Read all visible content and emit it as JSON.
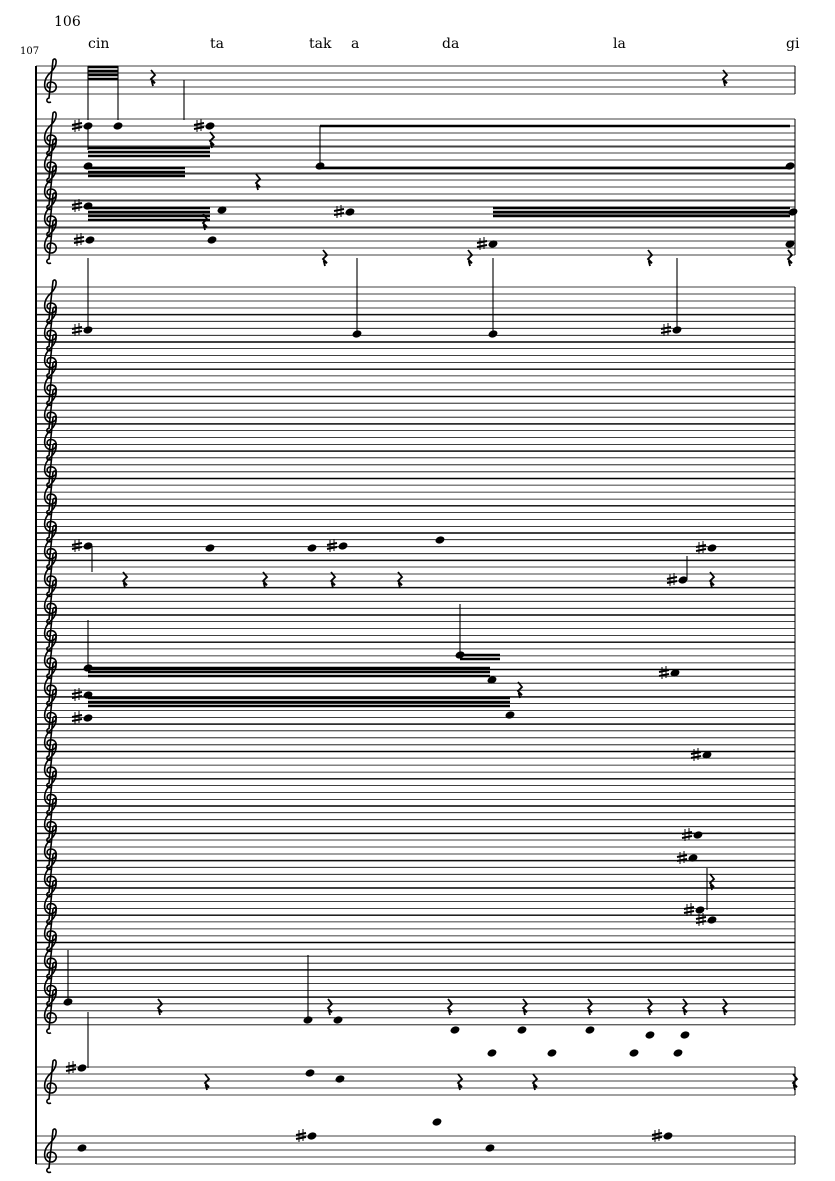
{
  "score": {
    "system_measure_number": "106",
    "bar_number": "107",
    "lyrics": [
      "cin",
      "ta",
      "tak",
      "a",
      "da",
      "la",
      "gi"
    ],
    "clef": "treble-clef",
    "ink_color": "#000000"
  }
}
